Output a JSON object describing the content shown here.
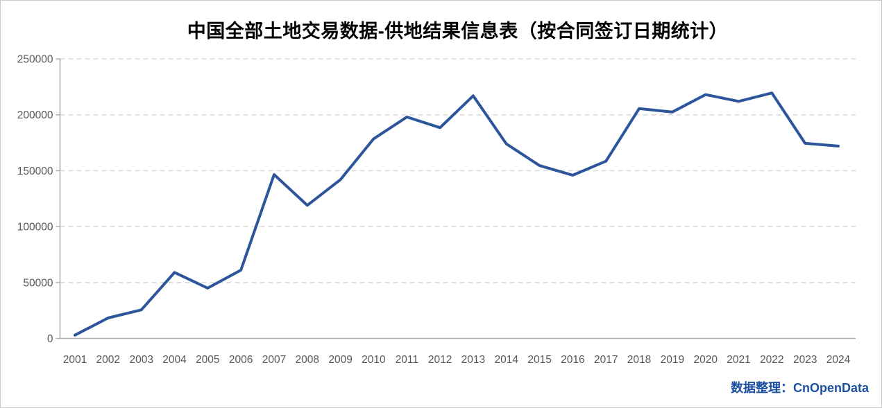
{
  "title": "中国全部土地交易数据-供地结果信息表（按合同签订日期统计）",
  "footer": {
    "label": "数据整理：",
    "brand": "CnOpenData",
    "color": "#1e50a2"
  },
  "chart_data": {
    "type": "line",
    "title": "中国全部土地交易数据-供地结果信息表（按合同签订日期统计）",
    "categories": [
      "2001",
      "2002",
      "2003",
      "2004",
      "2005",
      "2006",
      "2007",
      "2008",
      "2009",
      "2010",
      "2011",
      "2012",
      "2013",
      "2014",
      "2015",
      "2016",
      "2017",
      "2018",
      "2019",
      "2020",
      "2021",
      "2022",
      "2023",
      "2024"
    ],
    "values": [
      2900,
      18300,
      25500,
      59000,
      45000,
      61000,
      146500,
      119000,
      142000,
      178500,
      198000,
      188500,
      217000,
      174000,
      154500,
      146000,
      158500,
      205500,
      202500,
      218000,
      212000,
      219500,
      174500,
      172000
    ],
    "xlabel": "",
    "ylabel": "",
    "ylim": [
      0,
      250000
    ],
    "yticks": [
      0,
      50000,
      100000,
      150000,
      200000,
      250000
    ],
    "grid": true,
    "legend": "none",
    "line_color": "#2d559b",
    "grid_color": "#d8d8d8",
    "axis_color": "#adadad",
    "tick_label_color": "#595959"
  }
}
